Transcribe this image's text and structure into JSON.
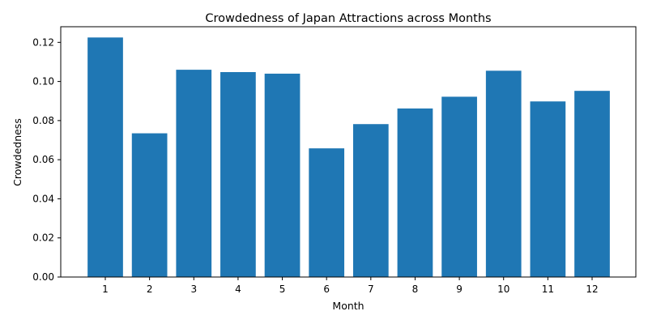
{
  "chart_data": {
    "type": "bar",
    "title": "Crowdedness of Japan Attractions across Months",
    "xlabel": "Month",
    "ylabel": "Crowdedness",
    "categories": [
      "1",
      "2",
      "3",
      "4",
      "5",
      "6",
      "7",
      "8",
      "9",
      "10",
      "11",
      "12"
    ],
    "values": [
      0.1225,
      0.0735,
      0.106,
      0.1048,
      0.104,
      0.0658,
      0.0782,
      0.0862,
      0.0922,
      0.1055,
      0.0898,
      0.0952
    ],
    "ylim": [
      0,
      0.128
    ],
    "yticks": [
      "0.00",
      "0.02",
      "0.04",
      "0.06",
      "0.08",
      "0.10",
      "0.12"
    ],
    "grid": false,
    "legend": "none",
    "bar_color": "#1f77b4"
  }
}
